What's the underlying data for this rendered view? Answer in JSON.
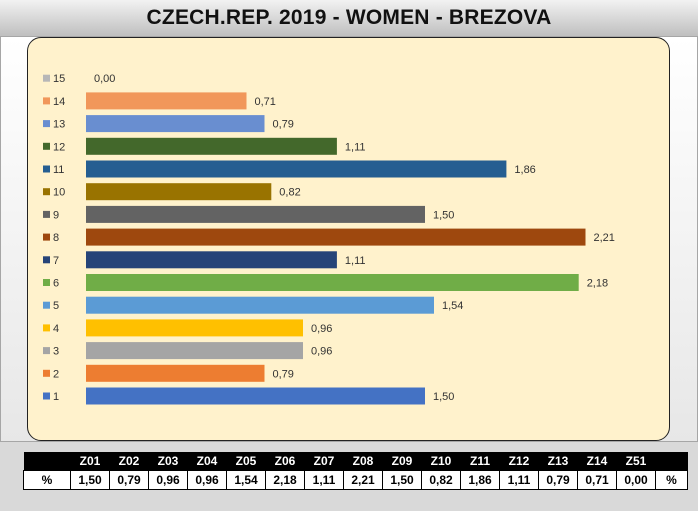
{
  "title": "CZECH.REP. 2019 - WOMEN - BREZOVA",
  "chart_data": {
    "type": "bar",
    "orientation": "horizontal",
    "title": "CZECH.REP. 2019 - WOMEN - BREZOVA",
    "categories": [
      "1",
      "2",
      "3",
      "4",
      "5",
      "6",
      "7",
      "8",
      "9",
      "10",
      "11",
      "12",
      "13",
      "14",
      "15"
    ],
    "values": [
      1.5,
      0.79,
      0.96,
      0.96,
      1.54,
      2.18,
      1.11,
      2.21,
      1.5,
      0.82,
      1.86,
      1.11,
      0.79,
      0.71,
      0.0
    ],
    "value_labels": [
      "1,50",
      "0,79",
      "0,96",
      "0,96",
      "1,54",
      "2,18",
      "1,11",
      "2,21",
      "1,50",
      "0,82",
      "1,86",
      "1,11",
      "0,79",
      "0,71",
      "0,00"
    ],
    "colors": [
      "#4472c4",
      "#ed7d31",
      "#a5a5a5",
      "#ffc000",
      "#5b9bd5",
      "#70ad47",
      "#264478",
      "#9e480e",
      "#636363",
      "#997300",
      "#255e91",
      "#43682b",
      "#698ed0",
      "#f1975a",
      "#b7b7b7"
    ],
    "legend_position": "left",
    "grid": false,
    "xlim": [
      0,
      2.5
    ]
  },
  "table": {
    "header": [
      "",
      "Z01",
      "Z02",
      "Z03",
      "Z04",
      "Z05",
      "Z06",
      "Z07",
      "Z08",
      "Z09",
      "Z10",
      "Z11",
      "Z12",
      "Z13",
      "Z14",
      "Z51",
      ""
    ],
    "row": [
      "%",
      "1,50",
      "0,79",
      "0,96",
      "0,96",
      "1,54",
      "2,18",
      "1,11",
      "2,21",
      "1,50",
      "0,82",
      "1,86",
      "1,11",
      "0,79",
      "0,71",
      "0,00",
      "%"
    ]
  }
}
